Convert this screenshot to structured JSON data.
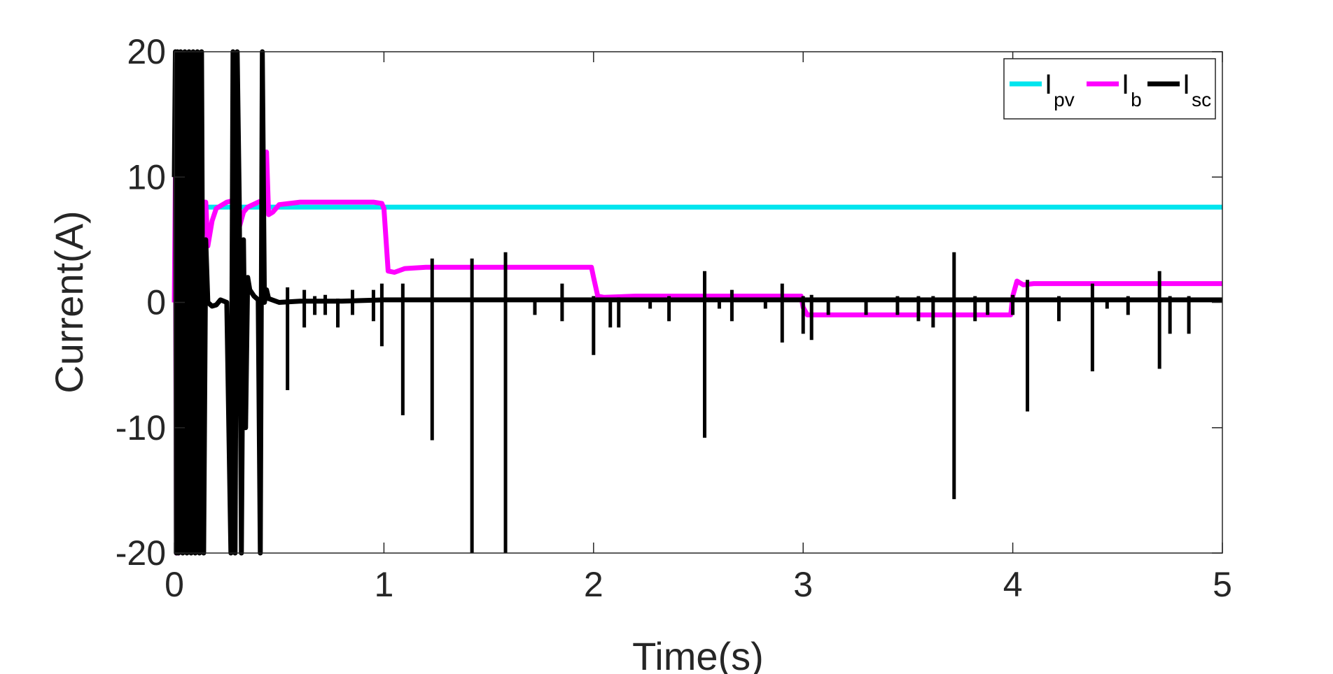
{
  "chart_data": {
    "type": "line",
    "xlabel": "Time(s)",
    "ylabel": "Current(A)",
    "xlim": [
      0,
      5
    ],
    "ylim": [
      -20,
      20
    ],
    "xticks": [
      "0",
      "1",
      "2",
      "3",
      "4",
      "5"
    ],
    "yticks": [
      "-20",
      "-10",
      "0",
      "10",
      "20"
    ],
    "grid": false,
    "legend_position": "top-right",
    "series": [
      {
        "name": "I_pv",
        "label_main": "I",
        "label_sub": "pv",
        "color": "#00e5ee",
        "x": [
          0,
          0.05,
          0.15,
          0.3,
          0.5,
          1,
          5
        ],
        "y": [
          7.6,
          7.6,
          7.6,
          7.6,
          7.6,
          7.6,
          7.6
        ]
      },
      {
        "name": "I_b",
        "label_main": "I",
        "label_sub": "b",
        "color": "#ff00ff",
        "x": [
          0,
          0.005,
          0.01,
          0.02,
          0.05,
          0.1,
          0.15,
          0.16,
          0.18,
          0.2,
          0.25,
          0.3,
          0.31,
          0.33,
          0.35,
          0.4,
          0.43,
          0.44,
          0.45,
          0.47,
          0.5,
          0.6,
          0.8,
          0.95,
          0.99,
          1.0,
          1.02,
          1.05,
          1.1,
          1.2,
          1.5,
          1.8,
          1.99,
          2.0,
          2.02,
          2.05,
          2.2,
          2.5,
          2.8,
          2.99,
          3.0,
          3.02,
          3.05,
          3.5,
          3.8,
          3.99,
          4.0,
          4.02,
          4.05,
          4.1,
          4.5,
          5.0
        ],
        "y": [
          0,
          10,
          -20,
          -20,
          5,
          8,
          8,
          4.5,
          6.5,
          7.5,
          8,
          8.2,
          6,
          7.2,
          7.6,
          8,
          8.2,
          12,
          7,
          7.2,
          7.8,
          8.0,
          8.0,
          8.0,
          7.9,
          7.5,
          2.5,
          2.4,
          2.7,
          2.8,
          2.8,
          2.8,
          2.8,
          2.0,
          0.5,
          0.4,
          0.5,
          0.5,
          0.5,
          0.5,
          -0.4,
          -1.0,
          -1.0,
          -1.0,
          -1.0,
          -1.0,
          0.5,
          1.7,
          1.4,
          1.5,
          1.5,
          1.5
        ]
      },
      {
        "name": "I_sc",
        "label_main": "I",
        "label_sub": "sc",
        "color": "#000000",
        "x": [
          0,
          0.005,
          0.01,
          0.015,
          0.02,
          0.03,
          0.04,
          0.05,
          0.06,
          0.07,
          0.08,
          0.09,
          0.1,
          0.11,
          0.12,
          0.13,
          0.14,
          0.15,
          0.16,
          0.18,
          0.2,
          0.22,
          0.25,
          0.27,
          0.28,
          0.29,
          0.3,
          0.31,
          0.32,
          0.33,
          0.34,
          0.35,
          0.36,
          0.38,
          0.4,
          0.41,
          0.42,
          0.43,
          0.44,
          0.45,
          0.5,
          0.6,
          0.8,
          1.0,
          5.0
        ],
        "y": [
          10,
          20,
          -20,
          20,
          -20,
          20,
          -20,
          20,
          -20,
          20,
          -20,
          20,
          -20,
          20,
          -20,
          20,
          -20,
          5,
          0,
          -0.3,
          -0.2,
          0.2,
          0,
          -20,
          20,
          -20,
          20,
          8,
          -20,
          5,
          -10,
          2,
          1,
          0.5,
          0.2,
          -20,
          20,
          0,
          1,
          0.3,
          0,
          0.1,
          0.1,
          0.2,
          0.2
        ]
      }
    ],
    "spikes": {
      "series": "I_sc",
      "color": "#000000",
      "x": [
        0.54,
        0.62,
        0.67,
        0.72,
        0.78,
        0.85,
        0.95,
        0.99,
        1.09,
        1.23,
        1.42,
        1.58,
        1.72,
        1.85,
        2.0,
        2.08,
        2.12,
        2.27,
        2.36,
        2.53,
        2.6,
        2.66,
        2.82,
        2.9,
        3.0,
        3.04,
        3.12,
        3.3,
        3.45,
        3.55,
        3.62,
        3.72,
        3.82,
        3.88,
        4.0,
        4.07,
        4.22,
        4.38,
        4.45,
        4.55,
        4.7,
        4.75,
        4.84
      ],
      "lo": [
        -7,
        -2,
        -1,
        -1,
        -2,
        -1,
        -1.5,
        -3.5,
        -9,
        -11,
        -20,
        -20,
        -1,
        -1.5,
        -4.2,
        -2,
        -2,
        -0.5,
        -1.5,
        -10.8,
        -0.5,
        -1.5,
        -0.5,
        -3.2,
        -2.5,
        -3,
        -1,
        -1,
        -1,
        -1.5,
        -2,
        -15.7,
        -1.5,
        -1,
        -1,
        -8.7,
        -1.5,
        -5.5,
        -0.5,
        -1,
        -5.3,
        -2.5,
        -2.5
      ],
      "hi": [
        1.2,
        1.0,
        0.5,
        0.6,
        0.3,
        1.0,
        1.0,
        1.5,
        1.5,
        3.5,
        3.5,
        4.0,
        0.3,
        1.5,
        0.5,
        0.3,
        0.4,
        0.2,
        0.5,
        2.5,
        0.3,
        1.0,
        0.3,
        1.5,
        0.5,
        0.6,
        0.2,
        0.2,
        0.5,
        0.5,
        0.5,
        4.0,
        0.5,
        0.3,
        0.6,
        1.8,
        0.5,
        1.5,
        0.3,
        0.5,
        2.5,
        0.5,
        0.5
      ]
    }
  }
}
